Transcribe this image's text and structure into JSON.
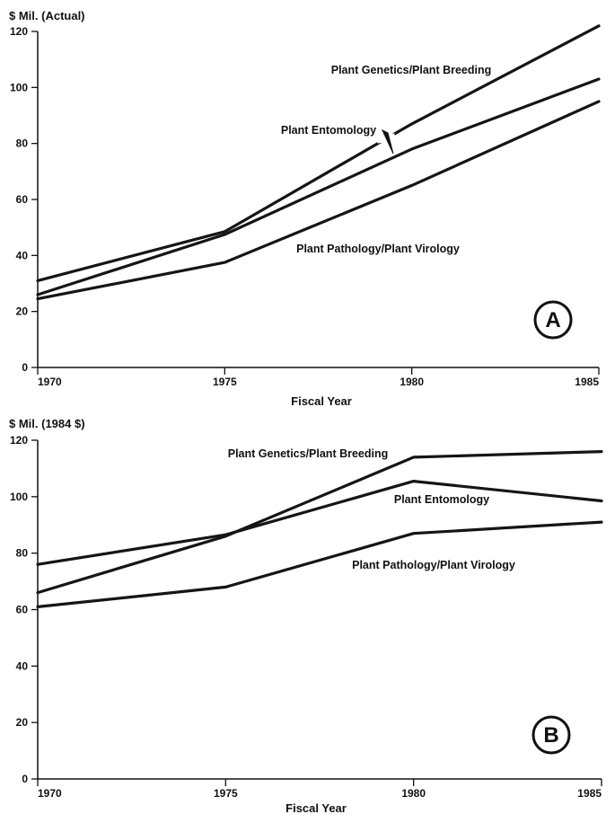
{
  "chart_data": [
    {
      "type": "line",
      "panel": "A",
      "ylabel": "$ Mil. (Actual)",
      "xlabel": "Fiscal Year",
      "x": [
        1970,
        1975,
        1980,
        1985
      ],
      "xlim": [
        1970,
        1985
      ],
      "ylim": [
        0,
        120
      ],
      "xticks": [
        "1970",
        "1975",
        "1980",
        "1985"
      ],
      "yticks": [
        "0",
        "20",
        "40",
        "60",
        "80",
        "100",
        "120"
      ],
      "series": [
        {
          "name": "Plant Genetics/Plant Breeding",
          "values": [
            31,
            48.5,
            87,
            122
          ]
        },
        {
          "name": "Plant Entomology",
          "values": [
            26,
            47.5,
            78,
            103
          ]
        },
        {
          "name": "Plant Pathology/Plant Virology",
          "values": [
            24.5,
            37.5,
            65,
            95
          ]
        }
      ],
      "grid": false
    },
    {
      "type": "line",
      "panel": "B",
      "ylabel": "$ Mil. (1984 $)",
      "xlabel": "Fiscal Year",
      "x": [
        1970,
        1975,
        1980,
        1985
      ],
      "xlim": [
        1970,
        1985
      ],
      "ylim": [
        0,
        120
      ],
      "xticks": [
        "1970",
        "1975",
        "1980",
        "1985"
      ],
      "yticks": [
        "0",
        "20",
        "40",
        "60",
        "80",
        "100",
        "120"
      ],
      "series": [
        {
          "name": "Plant Genetics/Plant Breeding",
          "values": [
            66,
            86,
            114,
            116
          ]
        },
        {
          "name": "Plant Entomology",
          "values": [
            76,
            86.5,
            105.5,
            98.5
          ]
        },
        {
          "name": "Plant Pathology/Plant Virology",
          "values": [
            61,
            68,
            87,
            91
          ]
        }
      ],
      "grid": false
    }
  ]
}
